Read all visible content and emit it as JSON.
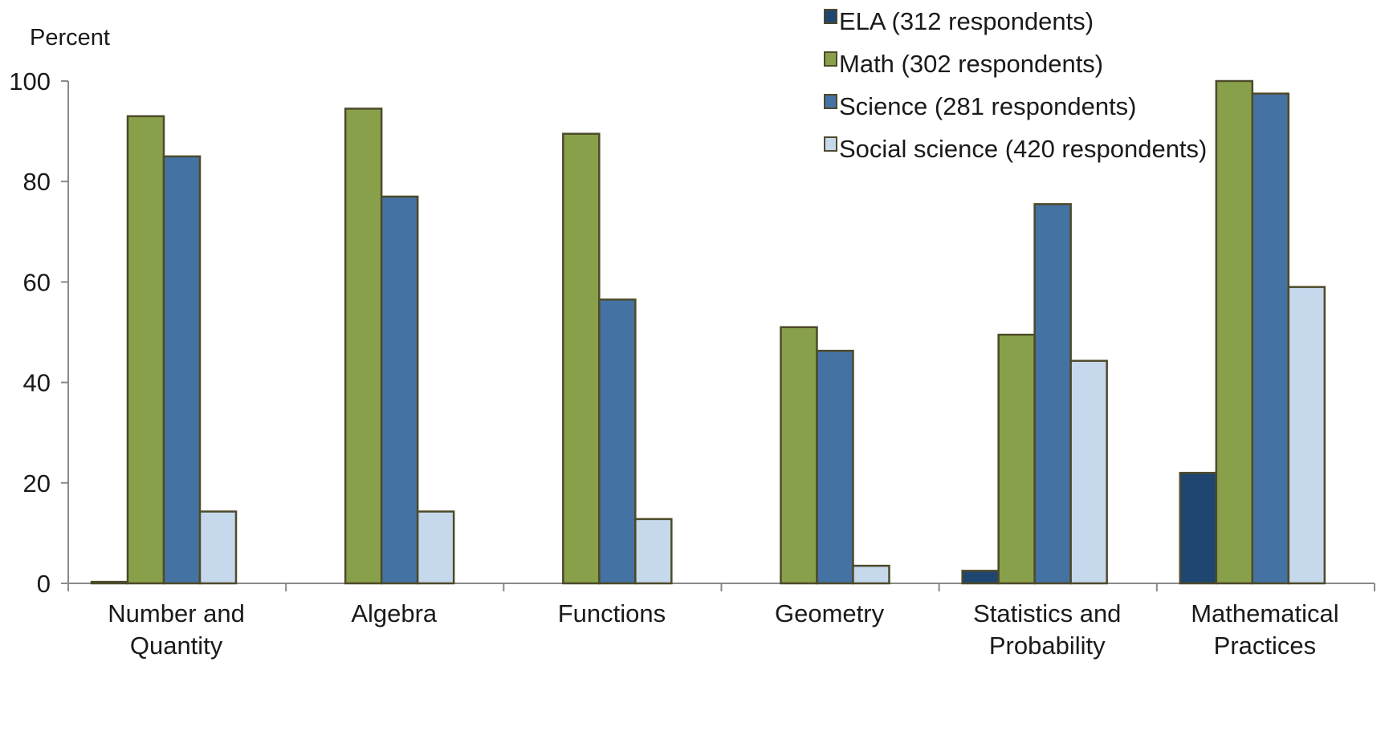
{
  "chart_data": {
    "type": "bar",
    "title": "",
    "xlabel": "",
    "ylabel": "Percent",
    "ylim": [
      0,
      100
    ],
    "yticks": [
      0,
      20,
      40,
      60,
      80,
      100
    ],
    "categories": [
      [
        "Number and",
        "Quantity"
      ],
      [
        "Algebra"
      ],
      [
        "Functions"
      ],
      [
        "Geometry"
      ],
      [
        "Statistics and",
        "Probability"
      ],
      [
        "Mathematical",
        "Practices"
      ]
    ],
    "series": [
      {
        "name": "ELA (312 respondents)",
        "color": "#1f4670",
        "values": [
          0.3,
          0,
          0,
          0,
          2.5,
          22
        ]
      },
      {
        "name": "Math (302 respondents)",
        "color": "#89a04b",
        "values": [
          93,
          94.5,
          89.5,
          51,
          49.5,
          100
        ]
      },
      {
        "name": "Science (281 respondents)",
        "color": "#4472a2",
        "values": [
          85,
          77,
          56.5,
          46.3,
          75.5,
          97.5
        ]
      },
      {
        "name": "Social science (420 respondents)",
        "color": "#c6d8ec",
        "values": [
          14.3,
          14.3,
          12.8,
          3.5,
          44.3,
          59
        ]
      }
    ],
    "bar_edge_color": "#4d4a2a",
    "grid": false,
    "legend_position": "top-right"
  }
}
